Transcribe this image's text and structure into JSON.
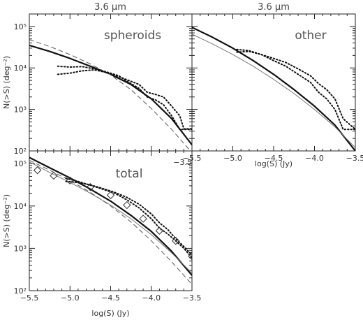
{
  "column_titles": [
    "3.6 μm",
    "3.6 μm"
  ],
  "chart_data": [
    {
      "type": "line",
      "id": "spheroids",
      "label": "spheroids",
      "xlabel": "",
      "ylabel": "N(>S) (deg⁻²)",
      "xlim": [
        -5.5,
        -3.5
      ],
      "ylim": [
        100,
        200000
      ],
      "yscale": "log",
      "xticks": [
        -5.5,
        -5.0,
        -4.5,
        -4.0,
        -3.5
      ],
      "xtick_labels": [
        "",
        "",
        "",
        "",
        "−3.5"
      ],
      "yticks": [
        100,
        1000,
        10000,
        100000
      ],
      "ytick_labels": [
        "10²",
        "10³",
        "10⁴",
        "10⁵"
      ],
      "series": [
        {
          "style": "solid-thick",
          "x": [
            -5.5,
            -5.25,
            -5.0,
            -4.75,
            -4.5,
            -4.25,
            -4.0,
            -3.75,
            -3.5
          ],
          "y": [
            35000,
            25000,
            17000,
            11000,
            7000,
            4000,
            1800,
            600,
            140
          ]
        },
        {
          "style": "dashed",
          "x": [
            -5.5,
            -5.25,
            -5.0,
            -4.75,
            -4.5,
            -4.25,
            -4.0,
            -3.75,
            -3.5
          ],
          "y": [
            48000,
            33000,
            21000,
            12500,
            6800,
            3000,
            1050,
            330,
            90
          ]
        },
        {
          "style": "dotted",
          "x": [
            -5.15,
            -5.0,
            -4.85,
            -4.7,
            -4.55,
            -4.4,
            -4.3,
            -4.15,
            -4.05,
            -3.95,
            -3.85,
            -3.75,
            -3.65,
            -3.6,
            -3.5
          ],
          "y": [
            11000,
            10500,
            10800,
            9500,
            8000,
            6500,
            4800,
            3200,
            2000,
            1700,
            1300,
            700,
            330,
            330,
            330
          ]
        },
        {
          "style": "dotted",
          "x": [
            -5.15,
            -5.0,
            -4.85,
            -4.7,
            -4.55,
            -4.4,
            -4.3,
            -4.15,
            -4.05,
            -3.95,
            -3.85,
            -3.75,
            -3.65,
            -3.6,
            -3.5
          ],
          "y": [
            7000,
            7500,
            8500,
            9000,
            7800,
            6200,
            5200,
            4000,
            2600,
            2300,
            2000,
            1200,
            700,
            340,
            340
          ]
        }
      ]
    },
    {
      "type": "line",
      "id": "other",
      "label": "other",
      "xlabel": "log(S) (Jy)",
      "ylabel": "",
      "xlim": [
        -5.5,
        -3.5
      ],
      "ylim": [
        100,
        200000
      ],
      "yscale": "log",
      "xticks": [
        -5.5,
        -5.0,
        -4.5,
        -4.0,
        -3.5
      ],
      "xtick_labels": [
        "−5.5",
        "−5.0",
        "−4.5",
        "−4.0",
        "−3.5"
      ],
      "yticks": [
        100,
        1000,
        10000,
        100000
      ],
      "ytick_labels": [
        "",
        "",
        "",
        ""
      ],
      "series": [
        {
          "style": "solid-thick",
          "x": [
            -5.5,
            -5.25,
            -5.0,
            -4.75,
            -4.5,
            -4.25,
            -4.0,
            -3.75,
            -3.5
          ],
          "y": [
            95000,
            55000,
            30000,
            15000,
            7000,
            3000,
            1200,
            420,
            100
          ]
        },
        {
          "style": "solid-thin",
          "x": [
            -5.5,
            -5.25,
            -5.0,
            -4.75,
            -4.5,
            -4.25,
            -4.0,
            -3.75,
            -3.5
          ],
          "y": [
            65000,
            38000,
            21000,
            11000,
            5300,
            2400,
            1000,
            380,
            120
          ]
        },
        {
          "style": "dotted",
          "x": [
            -4.95,
            -4.8,
            -4.65,
            -4.5,
            -4.35,
            -4.2,
            -4.05,
            -3.95,
            -3.85,
            -3.75,
            -3.65,
            -3.5
          ],
          "y": [
            28000,
            26000,
            21000,
            15000,
            11000,
            7000,
            4500,
            2600,
            1800,
            1000,
            330,
            330
          ]
        },
        {
          "style": "dotted",
          "x": [
            -4.95,
            -4.8,
            -4.65,
            -4.5,
            -4.35,
            -4.2,
            -4.05,
            -3.95,
            -3.85,
            -3.75,
            -3.65,
            -3.5
          ],
          "y": [
            24000,
            25000,
            21000,
            17000,
            13500,
            9500,
            6500,
            4200,
            3000,
            1800,
            600,
            330
          ]
        }
      ]
    },
    {
      "type": "line",
      "id": "total",
      "label": "total",
      "xlabel": "log(S) (Jy)",
      "ylabel": "N(>S) (deg⁻²)",
      "xlim": [
        -5.5,
        -3.5
      ],
      "ylim": [
        100,
        200000
      ],
      "yscale": "log",
      "xticks": [
        -5.5,
        -5.0,
        -4.5,
        -4.0,
        -3.5
      ],
      "xtick_labels": [
        "−5.5",
        "−5.0",
        "−4.5",
        "−4.0",
        "−3.5"
      ],
      "yticks": [
        100,
        1000,
        10000,
        100000
      ],
      "ytick_labels": [
        "10²",
        "10³",
        "10⁴",
        "10⁵"
      ],
      "series": [
        {
          "style": "solid-thick",
          "x": [
            -5.5,
            -5.25,
            -5.0,
            -4.75,
            -4.5,
            -4.25,
            -4.0,
            -3.75,
            -3.5
          ],
          "y": [
            140000,
            80000,
            46000,
            25000,
            13000,
            6000,
            2500,
            850,
            230
          ]
        },
        {
          "style": "solid-thin",
          "x": [
            -5.5,
            -5.25,
            -5.0,
            -4.75,
            -4.5,
            -4.25,
            -4.0,
            -3.75,
            -3.5
          ],
          "y": [
            110000,
            62000,
            36000,
            20000,
            10500,
            5000,
            2100,
            780,
            260
          ]
        },
        {
          "style": "dashed",
          "x": [
            -5.5,
            -5.25,
            -5.0,
            -4.75,
            -4.5,
            -4.25,
            -4.0,
            -3.75,
            -3.5
          ],
          "y": [
            120000,
            70000,
            40000,
            21000,
            10000,
            4200,
            1500,
            480,
            140
          ]
        },
        {
          "style": "dotted",
          "x": [
            -5.05,
            -4.9,
            -4.75,
            -4.6,
            -4.45,
            -4.3,
            -4.15,
            -4.0,
            -3.9,
            -3.8,
            -3.7,
            -3.6,
            -3.5
          ],
          "y": [
            45000,
            38000,
            31000,
            25000,
            20000,
            14000,
            9000,
            5000,
            3000,
            2200,
            1500,
            1000,
            600
          ]
        },
        {
          "style": "dotted",
          "x": [
            -5.05,
            -4.9,
            -4.75,
            -4.6,
            -4.45,
            -4.3,
            -4.15,
            -4.0,
            -3.9,
            -3.8,
            -3.7,
            -3.6,
            -3.5
          ],
          "y": [
            38000,
            36000,
            31500,
            26000,
            21000,
            16000,
            11000,
            6500,
            4000,
            2800,
            1700,
            1100,
            700
          ]
        },
        {
          "style": "diamonds",
          "x": [
            -5.4,
            -5.2,
            -5.0,
            -4.75,
            -4.5,
            -4.3,
            -4.1,
            -3.9,
            -3.7,
            -3.5
          ],
          "y": [
            70000,
            52000,
            40000,
            28000,
            18000,
            10500,
            5000,
            2600,
            1500,
            650
          ]
        }
      ]
    }
  ]
}
